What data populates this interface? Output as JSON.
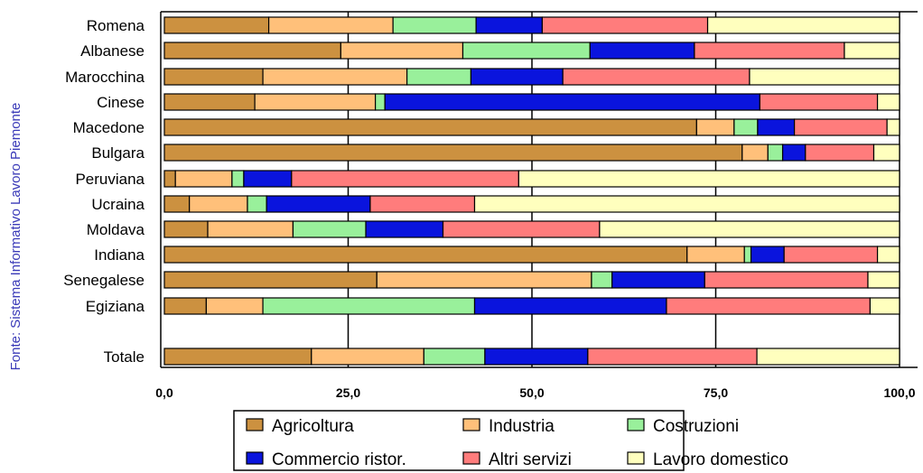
{
  "source_note": "Fonte: Sistema Informativo Lavoro Piemonte",
  "chart_data": {
    "type": "bar",
    "orientation": "horizontal",
    "stacked": true,
    "categories": [
      "Romena",
      "Albanese",
      "Marocchina",
      "Cinese",
      "Macedone",
      "Bulgara",
      "Peruviana",
      "Ucraina",
      "Moldava",
      "Indiana",
      "Senegalese",
      "Egiziana",
      "Totale"
    ],
    "series": [
      {
        "name": "Agricoltura",
        "color": "#cc9140",
        "values": [
          14.2,
          24.0,
          13.4,
          12.3,
          72.4,
          78.6,
          1.5,
          3.4,
          5.9,
          71.1,
          28.9,
          5.7,
          20.0
        ]
      },
      {
        "name": "Industria",
        "color": "#ffc07a",
        "values": [
          16.9,
          16.6,
          19.6,
          16.4,
          5.1,
          3.5,
          7.7,
          7.9,
          11.6,
          7.8,
          29.2,
          7.7,
          15.3
        ]
      },
      {
        "name": "Costruzioni",
        "color": "#99f09b",
        "values": [
          11.3,
          17.3,
          8.7,
          1.3,
          3.2,
          2.0,
          1.6,
          2.6,
          9.9,
          0.9,
          2.8,
          28.8,
          8.3
        ]
      },
      {
        "name": "Commercio ristor.",
        "color": "#0a14dd",
        "values": [
          9.0,
          14.2,
          12.5,
          51.0,
          5.0,
          3.1,
          6.5,
          14.1,
          10.5,
          4.5,
          12.6,
          26.1,
          14.0
        ]
      },
      {
        "name": "Altri servizi",
        "color": "#ff7c7c",
        "values": [
          22.5,
          20.4,
          25.4,
          16.0,
          12.6,
          9.3,
          30.9,
          14.2,
          21.3,
          12.7,
          22.2,
          27.7,
          23.0
        ]
      },
      {
        "name": "Lavoro domestico",
        "color": "#ffffbe",
        "values": [
          26.1,
          7.5,
          20.4,
          3.0,
          1.7,
          3.5,
          51.8,
          57.8,
          40.8,
          3.0,
          4.3,
          4.0,
          19.4
        ]
      }
    ],
    "xlim": [
      0,
      100
    ],
    "xticks": [
      "0,0",
      "25,0",
      "50,0",
      "75,0",
      "100,0"
    ],
    "grid": "vertical",
    "legend": "bottom"
  }
}
